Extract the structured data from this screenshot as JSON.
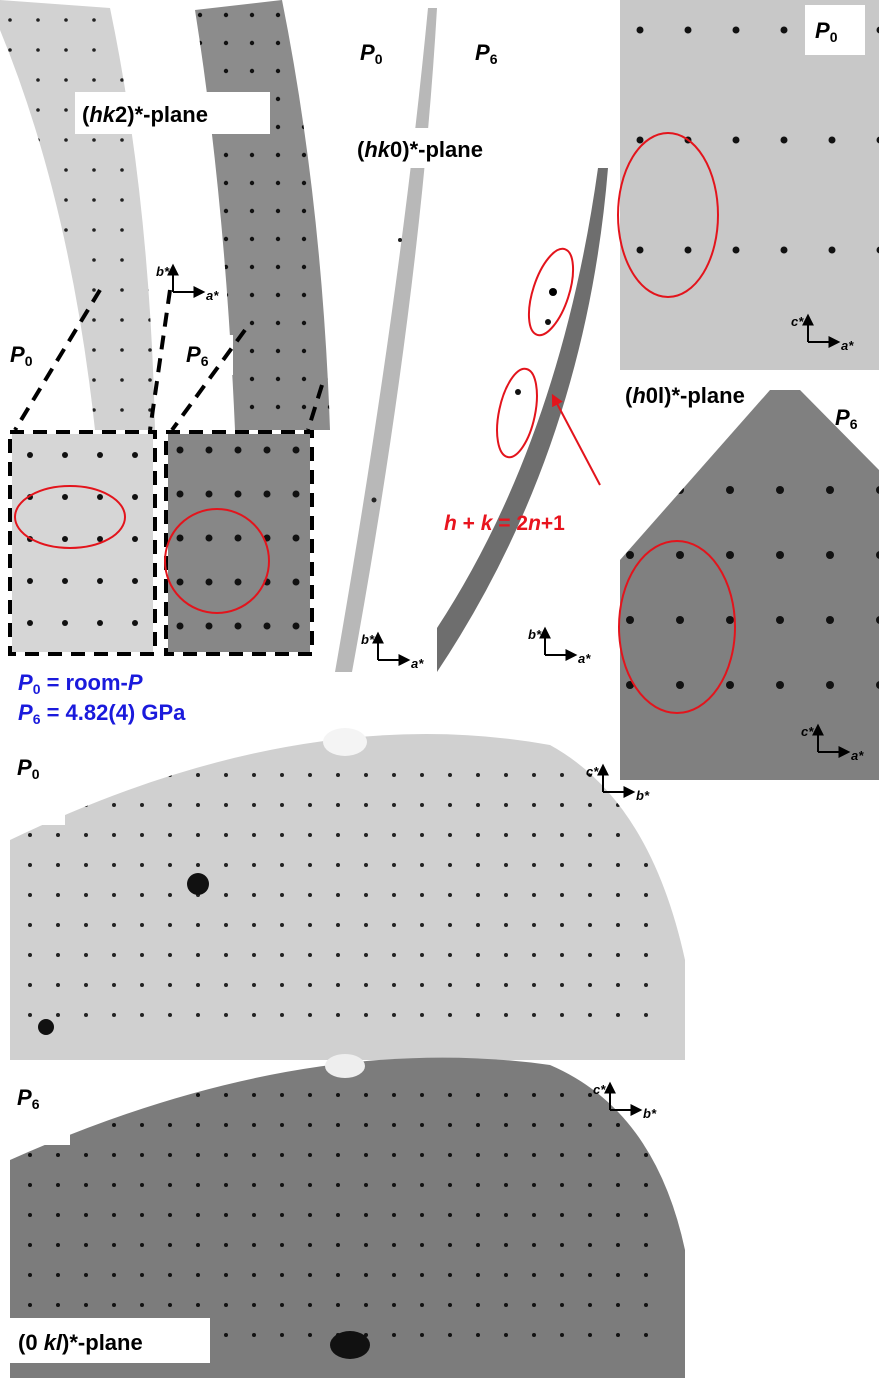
{
  "hk2_panel": {
    "plane_label": {
      "open": "(",
      "index": "hk",
      "close": "2)*-plane"
    },
    "p0": {
      "symbol": "P",
      "sub": "0"
    },
    "p6": {
      "symbol": "P",
      "sub": "6"
    },
    "axis_vertical": "b*",
    "axis_horizontal": "a*"
  },
  "hk0_panel": {
    "plane_label": {
      "open": "(",
      "index": "hk",
      "close": "0)*-plane"
    },
    "p0": {
      "symbol": "P",
      "sub": "0"
    },
    "p6": {
      "symbol": "P",
      "sub": "6"
    },
    "axes": [
      {
        "vertical": "b*",
        "horizontal": "a*"
      },
      {
        "vertical": "b*",
        "horizontal": "a*"
      }
    ],
    "condition": [
      "h",
      " + ",
      "k",
      " = 2",
      "n",
      "+1"
    ]
  },
  "h0l_panel": {
    "plane_label": {
      "open": "(",
      "index": "h",
      "close": "0l)*-plane"
    },
    "p0": {
      "symbol": "P",
      "sub": "0"
    },
    "p6": {
      "symbol": "P",
      "sub": "6"
    },
    "axes": [
      {
        "vertical": "c*",
        "horizontal": "a*"
      },
      {
        "vertical": "c*",
        "horizontal": "a*"
      }
    ]
  },
  "legend": {
    "p0": {
      "symbol": "P",
      "sub": "0",
      "text": " = room-",
      "symbol2": "P"
    },
    "p6": {
      "symbol": "P",
      "sub": "6",
      "text": " = 4.82(4) GPa"
    }
  },
  "0kl_panel": {
    "plane_label": {
      "open": "(0 ",
      "index": "kl",
      "close": ")*-plane"
    },
    "p0": {
      "symbol": "P",
      "sub": "0"
    },
    "p6": {
      "symbol": "P",
      "sub": "6"
    },
    "axes": [
      {
        "vertical": "c*",
        "horizontal": "b*"
      },
      {
        "vertical": "c*",
        "horizontal": "b*"
      }
    ]
  }
}
